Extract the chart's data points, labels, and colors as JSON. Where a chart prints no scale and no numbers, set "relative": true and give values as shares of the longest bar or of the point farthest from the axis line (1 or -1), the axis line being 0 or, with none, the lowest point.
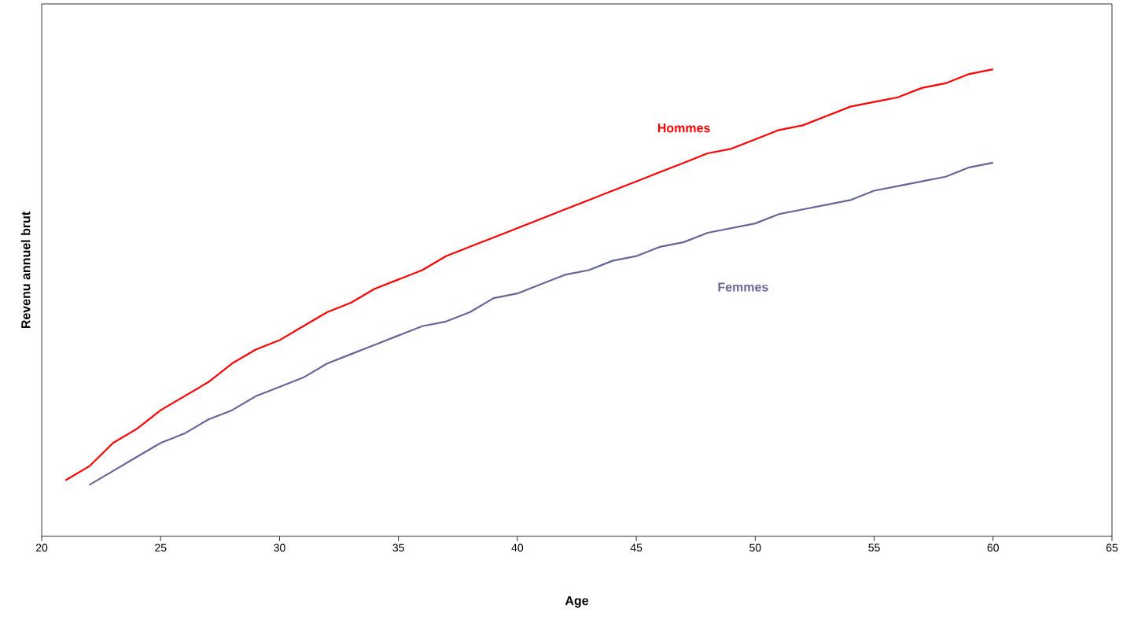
{
  "chart_data": {
    "type": "line",
    "xlabel": "Age",
    "ylabel": "Revenu annuel brut",
    "relative": true,
    "line_style": "solid",
    "xlim": [
      20,
      65
    ],
    "xticks": [
      20,
      25,
      30,
      35,
      40,
      45,
      50,
      55,
      60,
      65
    ],
    "series": [
      {
        "name": "Hommes",
        "color": "#ff0000",
        "x": [
          21,
          22,
          23,
          24,
          25,
          26,
          27,
          28,
          29,
          30,
          31,
          32,
          33,
          34,
          35,
          36,
          37,
          38,
          39,
          40,
          41,
          42,
          43,
          44,
          45,
          46,
          47,
          48,
          49,
          50,
          51,
          52,
          53,
          54,
          55,
          56,
          57,
          58,
          59,
          60
        ],
        "values": [
          0.12,
          0.15,
          0.2,
          0.23,
          0.27,
          0.3,
          0.33,
          0.37,
          0.4,
          0.42,
          0.45,
          0.48,
          0.5,
          0.53,
          0.55,
          0.57,
          0.6,
          0.62,
          0.64,
          0.66,
          0.68,
          0.7,
          0.72,
          0.74,
          0.76,
          0.78,
          0.8,
          0.82,
          0.83,
          0.85,
          0.87,
          0.88,
          0.9,
          0.92,
          0.93,
          0.94,
          0.96,
          0.97,
          0.99,
          1.0
        ]
      },
      {
        "name": "Femmes",
        "color": "#666699",
        "x": [
          22,
          23,
          24,
          25,
          26,
          27,
          28,
          29,
          30,
          31,
          32,
          33,
          34,
          35,
          36,
          37,
          38,
          39,
          40,
          41,
          42,
          43,
          44,
          45,
          46,
          47,
          48,
          49,
          50,
          51,
          52,
          53,
          54,
          55,
          56,
          57,
          58,
          59,
          60
        ],
        "values": [
          0.11,
          0.14,
          0.17,
          0.2,
          0.22,
          0.25,
          0.27,
          0.3,
          0.32,
          0.34,
          0.37,
          0.39,
          0.41,
          0.43,
          0.45,
          0.46,
          0.48,
          0.51,
          0.52,
          0.54,
          0.56,
          0.57,
          0.59,
          0.6,
          0.62,
          0.63,
          0.65,
          0.66,
          0.67,
          0.69,
          0.7,
          0.71,
          0.72,
          0.74,
          0.75,
          0.76,
          0.77,
          0.79,
          0.8
        ]
      }
    ]
  }
}
